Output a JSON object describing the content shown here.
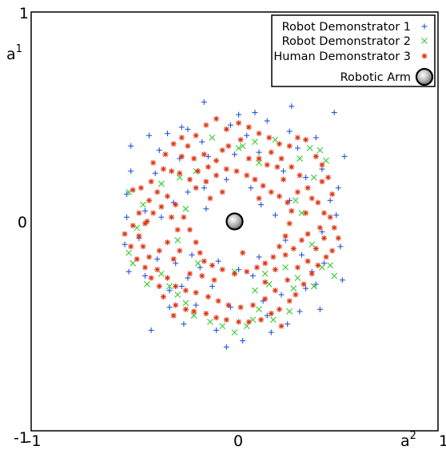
{
  "chart_data": {
    "type": "scatter",
    "xlabel": "a",
    "xlabel_sup": "2",
    "ylabel": "a",
    "ylabel_sup": "1",
    "xlim": [
      -1,
      1
    ],
    "ylim": [
      -1,
      1
    ],
    "x_ticks": [
      "-1",
      "0",
      "1"
    ],
    "y_ticks": [
      "-1",
      "0",
      "1"
    ],
    "grid": false,
    "legend_position": "top-right",
    "series": [
      {
        "name": "Robot Demonstrator 1",
        "marker": "plus",
        "color": "#2255dd",
        "points": [
          [
            -0.51,
            0.36
          ],
          [
            -0.42,
            0.41
          ],
          [
            -0.37,
            0.34
          ],
          [
            -0.26,
            0.45
          ],
          [
            -0.23,
            0.44
          ],
          [
            -0.15,
            0.57
          ],
          [
            -0.02,
            0.46
          ],
          [
            0.06,
            0.41
          ],
          [
            0.16,
            0.48
          ],
          [
            0.27,
            0.43
          ],
          [
            0.4,
            0.4
          ],
          [
            0.49,
            0.52
          ],
          [
            0.28,
            0.55
          ],
          [
            0.1,
            0.52
          ],
          [
            0.54,
            0.31
          ],
          [
            0.51,
            0.16
          ],
          [
            0.5,
            0.03
          ],
          [
            0.52,
            -0.12
          ],
          [
            0.53,
            -0.28
          ],
          [
            0.4,
            -0.3
          ],
          [
            0.33,
            -0.16
          ],
          [
            0.25,
            -0.09
          ],
          [
            0.2,
            0.03
          ],
          [
            0.13,
            0.08
          ],
          [
            0.08,
            0.16
          ],
          [
            -0.04,
            0.2
          ],
          [
            -0.15,
            0.16
          ],
          [
            -0.23,
            0.14
          ],
          [
            -0.3,
            0.09
          ],
          [
            -0.36,
            0.02
          ],
          [
            -0.44,
            0.05
          ],
          [
            -0.53,
            0.13
          ],
          [
            -0.53,
            0.02
          ],
          [
            -0.54,
            -0.11
          ],
          [
            -0.52,
            -0.24
          ],
          [
            -0.44,
            -0.26
          ],
          [
            -0.32,
            -0.33
          ],
          [
            -0.26,
            -0.31
          ],
          [
            -0.19,
            -0.4
          ],
          [
            -0.09,
            -0.52
          ],
          [
            0.04,
            -0.57
          ],
          [
            -0.04,
            -0.6
          ],
          [
            0.18,
            -0.53
          ],
          [
            0.26,
            -0.49
          ],
          [
            0.32,
            -0.43
          ],
          [
            0.42,
            -0.42
          ],
          [
            0.35,
            -0.32
          ],
          [
            -0.41,
            -0.52
          ],
          [
            -0.25,
            -0.49
          ],
          [
            -0.02,
            -0.41
          ],
          [
            0.14,
            -0.38
          ],
          [
            0.09,
            -0.26
          ],
          [
            0.02,
            -0.23
          ],
          [
            -0.08,
            -0.19
          ],
          [
            -0.17,
            -0.22
          ],
          [
            -0.29,
            -0.2
          ],
          [
            -0.38,
            -0.18
          ],
          [
            -0.51,
            0.24
          ],
          [
            -0.39,
            0.23
          ],
          [
            -0.27,
            0.3
          ],
          [
            -0.13,
            0.31
          ],
          [
            0.0,
            0.32
          ],
          [
            0.12,
            0.33
          ],
          [
            0.24,
            0.24
          ],
          [
            0.35,
            0.21
          ],
          [
            0.43,
            0.25
          ],
          [
            0.47,
            0.1
          ],
          [
            0.43,
            -0.05
          ],
          [
            0.44,
            -0.2
          ],
          [
            0.38,
            -0.24
          ],
          [
            0.23,
            -0.35
          ],
          [
            0.16,
            -0.45
          ],
          [
            -0.11,
            -0.31
          ],
          [
            -0.23,
            -0.27
          ],
          [
            -0.32,
            -0.41
          ],
          [
            -0.21,
            -0.16
          ],
          [
            0.12,
            -0.17
          ],
          [
            0.27,
            0.1
          ],
          [
            -0.14,
            0.06
          ],
          [
            -0.47,
            -0.08
          ],
          [
            -0.16,
            0.38
          ],
          [
            0.31,
            0.35
          ],
          [
            0.02,
            0.51
          ],
          [
            -0.33,
            0.42
          ]
        ]
      },
      {
        "name": "Robot Demonstrator 2",
        "marker": "cross",
        "color": "#33cc33",
        "points": [
          [
            0.04,
            0.36
          ],
          [
            0.02,
            0.35
          ],
          [
            0.1,
            0.38
          ],
          [
            0.2,
            0.39
          ],
          [
            0.37,
            0.35
          ],
          [
            0.42,
            0.34
          ],
          [
            0.45,
            0.29
          ],
          [
            0.32,
            0.3
          ],
          [
            0.39,
            0.21
          ],
          [
            0.3,
            0.1
          ],
          [
            0.33,
            0.04
          ],
          [
            0.38,
            -0.11
          ],
          [
            0.43,
            -0.22
          ],
          [
            0.47,
            -0.21
          ],
          [
            0.49,
            -0.26
          ],
          [
            0.39,
            -0.31
          ],
          [
            0.31,
            -0.27
          ],
          [
            0.25,
            -0.22
          ],
          [
            0.17,
            -0.3
          ],
          [
            0.1,
            -0.33
          ],
          [
            0.12,
            -0.42
          ],
          [
            0.09,
            -0.47
          ],
          [
            0.06,
            -0.5
          ],
          [
            0.0,
            -0.53
          ],
          [
            -0.06,
            -0.5
          ],
          [
            -0.12,
            -0.48
          ],
          [
            -0.2,
            -0.45
          ],
          [
            -0.24,
            -0.39
          ],
          [
            -0.28,
            -0.35
          ],
          [
            -0.32,
            -0.31
          ],
          [
            -0.36,
            -0.25
          ],
          [
            -0.43,
            -0.3
          ],
          [
            -0.5,
            -0.2
          ],
          [
            -0.52,
            -0.15
          ],
          [
            -0.48,
            -0.03
          ],
          [
            -0.45,
            0.08
          ],
          [
            -0.52,
            0.14
          ],
          [
            -0.36,
            0.18
          ],
          [
            -0.27,
            0.21
          ],
          [
            -0.19,
            0.24
          ],
          [
            -0.24,
            0.06
          ],
          [
            -0.28,
            -0.09
          ],
          [
            -0.18,
            -0.2
          ],
          [
            0.0,
            -0.24
          ],
          [
            0.15,
            -0.25
          ],
          [
            0.29,
            -0.32
          ],
          [
            0.27,
            -0.43
          ],
          [
            0.19,
            -0.47
          ],
          [
            0.12,
            0.28
          ],
          [
            -0.11,
            0.4
          ]
        ]
      },
      {
        "name": "Human Demonstrator 3",
        "marker": "star",
        "color": "#dd3311",
        "points": [
          [
            -0.5,
            0.15
          ],
          [
            -0.46,
            0.16
          ],
          [
            -0.41,
            0.19
          ],
          [
            -0.35,
            0.25
          ],
          [
            -0.31,
            0.24
          ],
          [
            -0.27,
            0.23
          ],
          [
            -0.22,
            0.2
          ],
          [
            -0.18,
            0.24
          ],
          [
            -0.13,
            0.26
          ],
          [
            -0.09,
            0.29
          ],
          [
            -0.06,
            0.34
          ],
          [
            -0.03,
            0.36
          ],
          [
            0.03,
            0.39
          ],
          [
            0.07,
            0.3
          ],
          [
            0.12,
            0.3
          ],
          [
            0.16,
            0.27
          ],
          [
            0.21,
            0.26
          ],
          [
            0.23,
            0.3
          ],
          [
            0.28,
            0.26
          ],
          [
            0.32,
            0.22
          ],
          [
            0.36,
            0.16
          ],
          [
            0.38,
            0.11
          ],
          [
            0.41,
            0.09
          ],
          [
            0.44,
            0.04
          ],
          [
            0.47,
            0.02
          ],
          [
            0.49,
            -0.03
          ],
          [
            0.51,
            -0.08
          ],
          [
            0.48,
            -0.14
          ],
          [
            0.45,
            -0.17
          ],
          [
            0.41,
            -0.21
          ],
          [
            0.38,
            -0.25
          ],
          [
            0.34,
            -0.3
          ],
          [
            0.3,
            -0.35
          ],
          [
            0.27,
            -0.38
          ],
          [
            0.22,
            -0.42
          ],
          [
            0.18,
            -0.44
          ],
          [
            0.13,
            -0.47
          ],
          [
            0.07,
            -0.48
          ],
          [
            0.02,
            -0.48
          ],
          [
            -0.04,
            -0.47
          ],
          [
            -0.09,
            -0.46
          ],
          [
            -0.14,
            -0.44
          ],
          [
            -0.2,
            -0.43
          ],
          [
            -0.24,
            -0.42
          ],
          [
            -0.29,
            -0.4
          ],
          [
            -0.35,
            -0.36
          ],
          [
            -0.37,
            -0.31
          ],
          [
            -0.41,
            -0.27
          ],
          [
            -0.44,
            -0.22
          ],
          [
            -0.48,
            -0.18
          ],
          [
            -0.51,
            -0.12
          ],
          [
            -0.54,
            -0.06
          ],
          [
            -0.5,
            -0.02
          ],
          [
            -0.47,
            0.04
          ],
          [
            -0.42,
            0.1
          ],
          [
            -0.38,
            0.14
          ],
          [
            -0.33,
            0.12
          ],
          [
            -0.29,
            0.08
          ],
          [
            -0.25,
            0.02
          ],
          [
            -0.22,
            -0.04
          ],
          [
            -0.19,
            -0.1
          ],
          [
            -0.17,
            -0.15
          ],
          [
            -0.15,
            -0.19
          ],
          [
            -0.11,
            -0.21
          ],
          [
            -0.06,
            -0.23
          ],
          [
            0.0,
            -0.25
          ],
          [
            0.06,
            -0.24
          ],
          [
            0.11,
            -0.22
          ],
          [
            0.15,
            -0.2
          ],
          [
            0.19,
            -0.17
          ],
          [
            0.22,
            -0.12
          ],
          [
            0.25,
            -0.07
          ],
          [
            0.27,
            -0.01
          ],
          [
            0.28,
            0.05
          ],
          [
            0.26,
            0.09
          ],
          [
            0.22,
            0.12
          ],
          [
            0.18,
            0.14
          ],
          [
            0.14,
            0.17
          ],
          [
            0.1,
            0.2
          ],
          [
            0.06,
            0.22
          ],
          [
            0.01,
            0.24
          ],
          [
            -0.04,
            0.25
          ],
          [
            -0.09,
            0.22
          ],
          [
            -0.14,
            0.19
          ],
          [
            -0.19,
            0.16
          ],
          [
            -0.26,
            0.31
          ],
          [
            -0.23,
            0.36
          ],
          [
            -0.19,
            0.41
          ],
          [
            -0.14,
            0.46
          ],
          [
            -0.09,
            0.49
          ],
          [
            -0.04,
            0.44
          ],
          [
            0.02,
            0.47
          ],
          [
            0.07,
            0.45
          ],
          [
            0.12,
            0.42
          ],
          [
            0.17,
            0.4
          ],
          [
            0.22,
            0.37
          ],
          [
            0.27,
            0.36
          ],
          [
            0.31,
            0.4
          ],
          [
            0.35,
            0.39
          ],
          [
            0.4,
            0.31
          ],
          [
            0.43,
            0.27
          ],
          [
            0.46,
            0.21
          ],
          [
            0.48,
            0.13
          ],
          [
            0.44,
            -0.08
          ],
          [
            0.4,
            -0.13
          ],
          [
            0.36,
            -0.19
          ],
          [
            0.31,
            -0.22
          ],
          [
            0.26,
            -0.28
          ],
          [
            0.2,
            -0.33
          ],
          [
            0.15,
            -0.37
          ],
          [
            0.09,
            -0.4
          ],
          [
            0.03,
            -0.41
          ],
          [
            -0.03,
            -0.4
          ],
          [
            -0.08,
            -0.38
          ],
          [
            -0.13,
            -0.36
          ],
          [
            -0.19,
            -0.34
          ],
          [
            -0.24,
            -0.33
          ],
          [
            -0.29,
            -0.31
          ],
          [
            -0.33,
            -0.27
          ],
          [
            -0.38,
            -0.23
          ],
          [
            -0.42,
            -0.17
          ],
          [
            -0.45,
            -0.12
          ],
          [
            -0.47,
            -0.07
          ],
          [
            -0.44,
            -0.01
          ],
          [
            -0.4,
            0.04
          ],
          [
            -0.36,
            0.07
          ],
          [
            -0.31,
            0.02
          ],
          [
            -0.28,
            -0.04
          ],
          [
            -0.33,
            -0.1
          ],
          [
            -0.37,
            -0.14
          ],
          [
            -0.4,
            0.28
          ],
          [
            -0.34,
            0.32
          ],
          [
            -0.3,
            0.37
          ],
          [
            -0.26,
            0.4
          ],
          [
            -0.2,
            0.3
          ],
          [
            -0.15,
            0.32
          ],
          [
            0.18,
            0.33
          ],
          [
            0.24,
            0.2
          ],
          [
            0.31,
            0.14
          ],
          [
            0.35,
            0.04
          ],
          [
            0.36,
            -0.06
          ],
          [
            0.33,
            -0.09
          ],
          [
            0.29,
            -0.13
          ],
          [
            0.25,
            -0.16
          ],
          [
            0.2,
            -0.23
          ],
          [
            0.15,
            -0.29
          ],
          [
            -0.1,
            -0.28
          ],
          [
            -0.16,
            -0.26
          ],
          [
            -0.22,
            -0.25
          ],
          [
            -0.27,
            -0.14
          ],
          [
            -0.3,
            -0.18
          ],
          [
            0.12,
            0.11
          ],
          [
            -0.06,
            0.14
          ],
          [
            0.04,
            -0.15
          ],
          [
            0.43,
            0.19
          ],
          [
            0.42,
            -0.03
          ],
          [
            0.23,
            -0.5
          ],
          [
            -0.3,
            -0.45
          ],
          [
            -0.43,
            0.0
          ],
          [
            -0.12,
            0.11
          ]
        ]
      },
      {
        "name": "Robotic Arm",
        "marker": "circle",
        "color": "#b8b8b8",
        "points": [
          [
            0,
            0
          ]
        ]
      }
    ]
  }
}
